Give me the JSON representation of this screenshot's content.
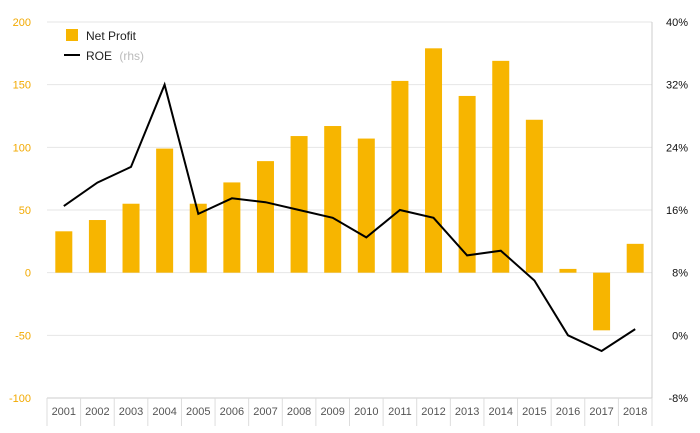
{
  "chart_data": {
    "type": "bar-line-combo",
    "categories": [
      "2001",
      "2002",
      "2003",
      "2004",
      "2005",
      "2006",
      "2007",
      "2008",
      "2009",
      "2010",
      "2011",
      "2012",
      "2013",
      "2014",
      "2015",
      "2016",
      "2017",
      "2018"
    ],
    "series": [
      {
        "name": "Net Profit",
        "type": "bar",
        "axis": "left",
        "color": "#f7b500",
        "values": [
          33,
          42,
          55,
          99,
          55,
          72,
          89,
          109,
          117,
          107,
          153,
          179,
          141,
          169,
          122,
          3,
          -46,
          23
        ]
      },
      {
        "name": "ROE",
        "name_suffix": "(rhs)",
        "type": "line",
        "axis": "right",
        "color": "#000000",
        "values": [
          16.5,
          19.5,
          21.5,
          32.0,
          15.5,
          17.5,
          17.0,
          16.0,
          15.0,
          12.5,
          16.0,
          15.0,
          10.2,
          10.8,
          7.0,
          0.0,
          -2.0,
          0.8
        ]
      }
    ],
    "left_axis": {
      "ylim": [
        -100,
        200
      ],
      "ticks": [
        -100,
        -50,
        0,
        50,
        100,
        150,
        200
      ],
      "tick_labels": [
        "-100",
        "-50",
        "0",
        "50",
        "100",
        "150",
        "200"
      ],
      "color": "#f2a900"
    },
    "right_axis": {
      "ylim": [
        -8,
        40
      ],
      "ticks": [
        -8,
        0,
        8,
        16,
        24,
        32,
        40
      ],
      "tick_labels": [
        "-8%",
        "0%",
        "8%",
        "16%",
        "24%",
        "32%",
        "40%"
      ],
      "color": "#111111"
    },
    "grid": true,
    "legend_position": "top-left"
  }
}
